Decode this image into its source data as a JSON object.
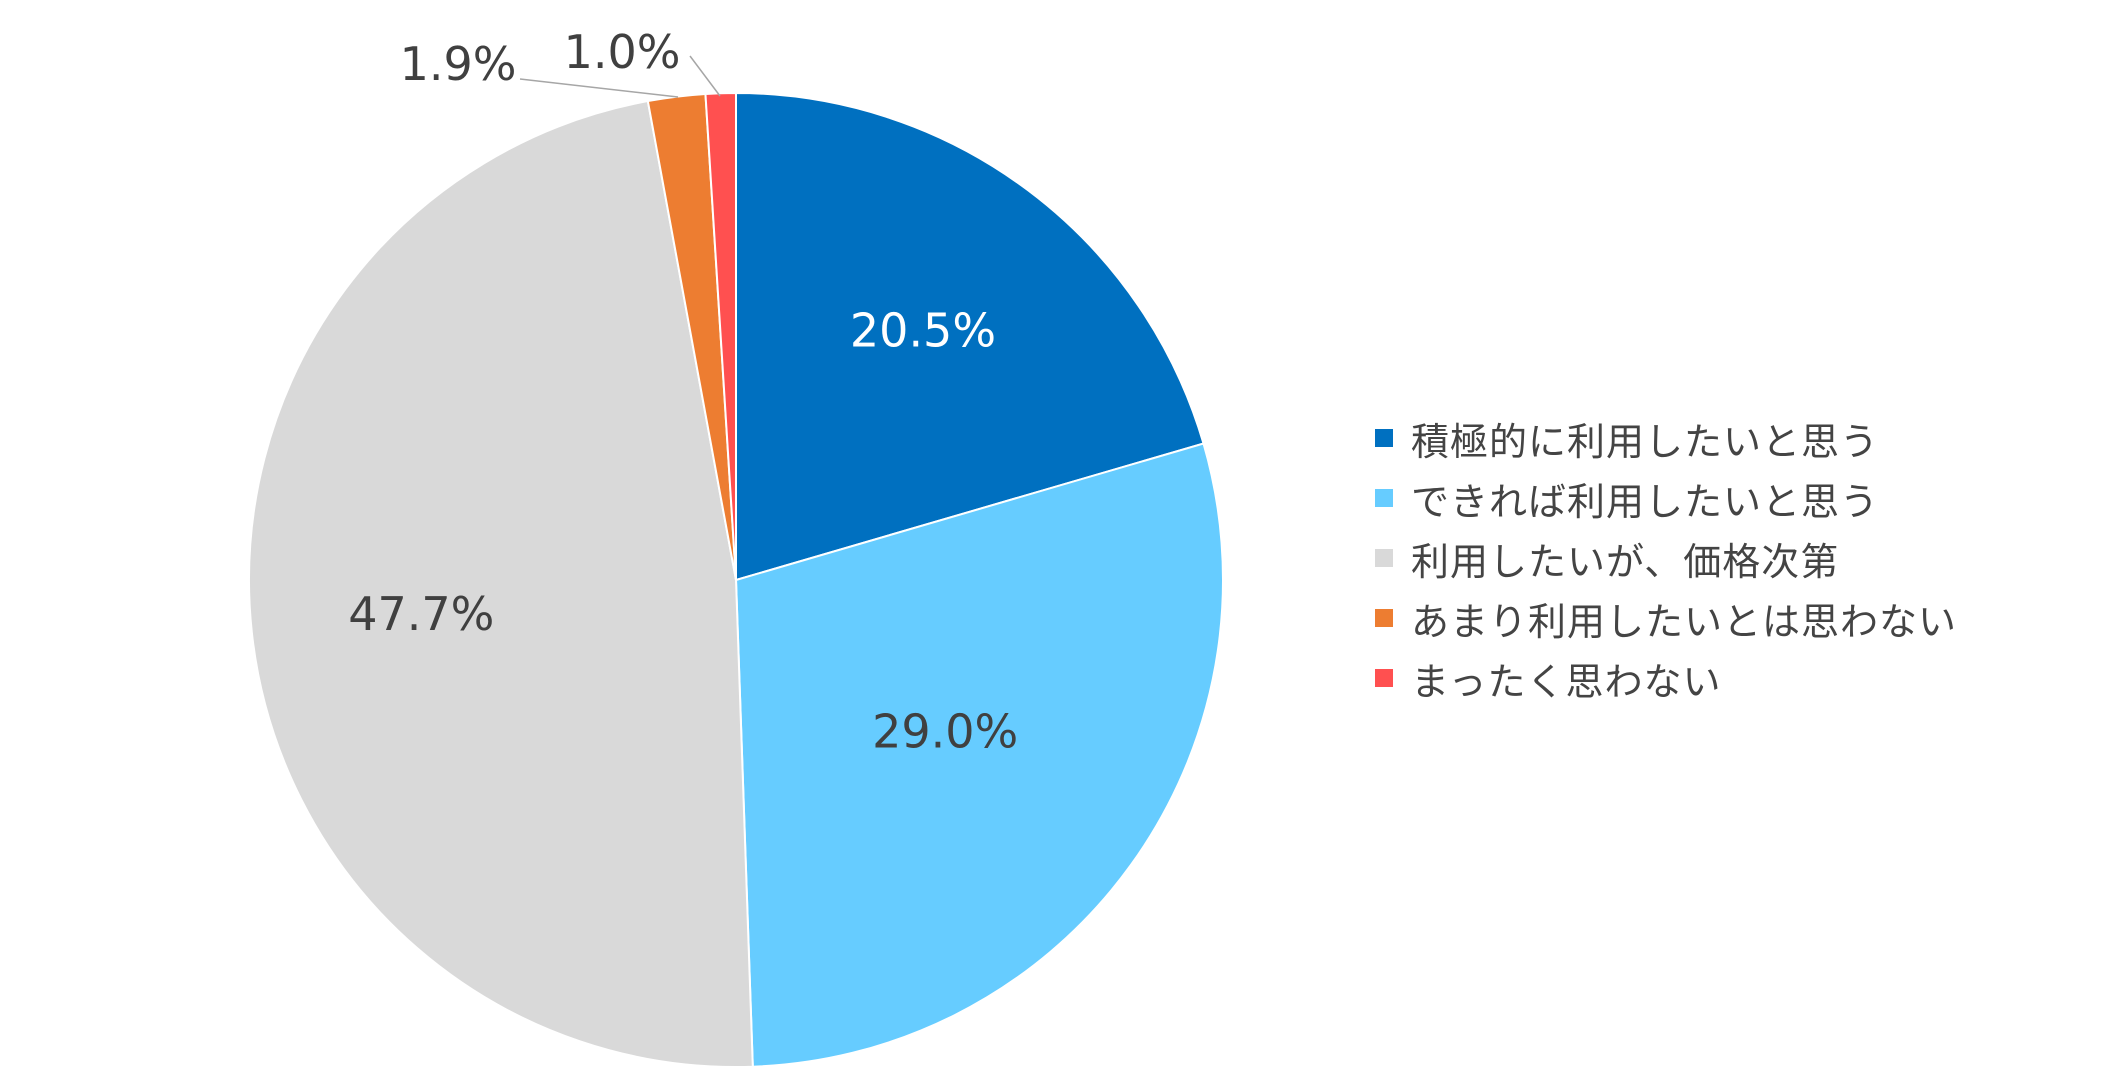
{
  "chart_data": {
    "type": "pie",
    "title": "",
    "start_angle": "12 o'clock",
    "direction": "clockwise",
    "slices": [
      {
        "label": "積極的に利用したいと思う",
        "value": 20.5,
        "value_label": "20.5%",
        "color": "#0070C0",
        "label_color": "#ffffff",
        "label_position": "inside"
      },
      {
        "label": "できれば利用したいと思う",
        "value": 29.0,
        "value_label": "29.0%",
        "color": "#66CCFF",
        "label_color": "#404040",
        "label_position": "inside"
      },
      {
        "label": "利用したいが、価格次第",
        "value": 47.7,
        "value_label": "47.7%",
        "color": "#D9D9D9",
        "label_color": "#404040",
        "label_position": "inside"
      },
      {
        "label": "あまり利用したいとは思わない",
        "value": 1.9,
        "value_label": "1.9%",
        "color": "#ED7D31",
        "label_color": "#404040",
        "label_position": "outside"
      },
      {
        "label": "まったく思わない",
        "value": 1.0,
        "value_label": "1.0%",
        "color": "#FF5050",
        "label_color": "#404040",
        "label_position": "outside"
      }
    ],
    "legend": {
      "position": "right",
      "items": [
        "積極的に利用したいと思う",
        "できれば利用したいと思う",
        "利用したいが、価格次第",
        "あまり利用したいとは思わない",
        "まったく思わない"
      ]
    }
  }
}
